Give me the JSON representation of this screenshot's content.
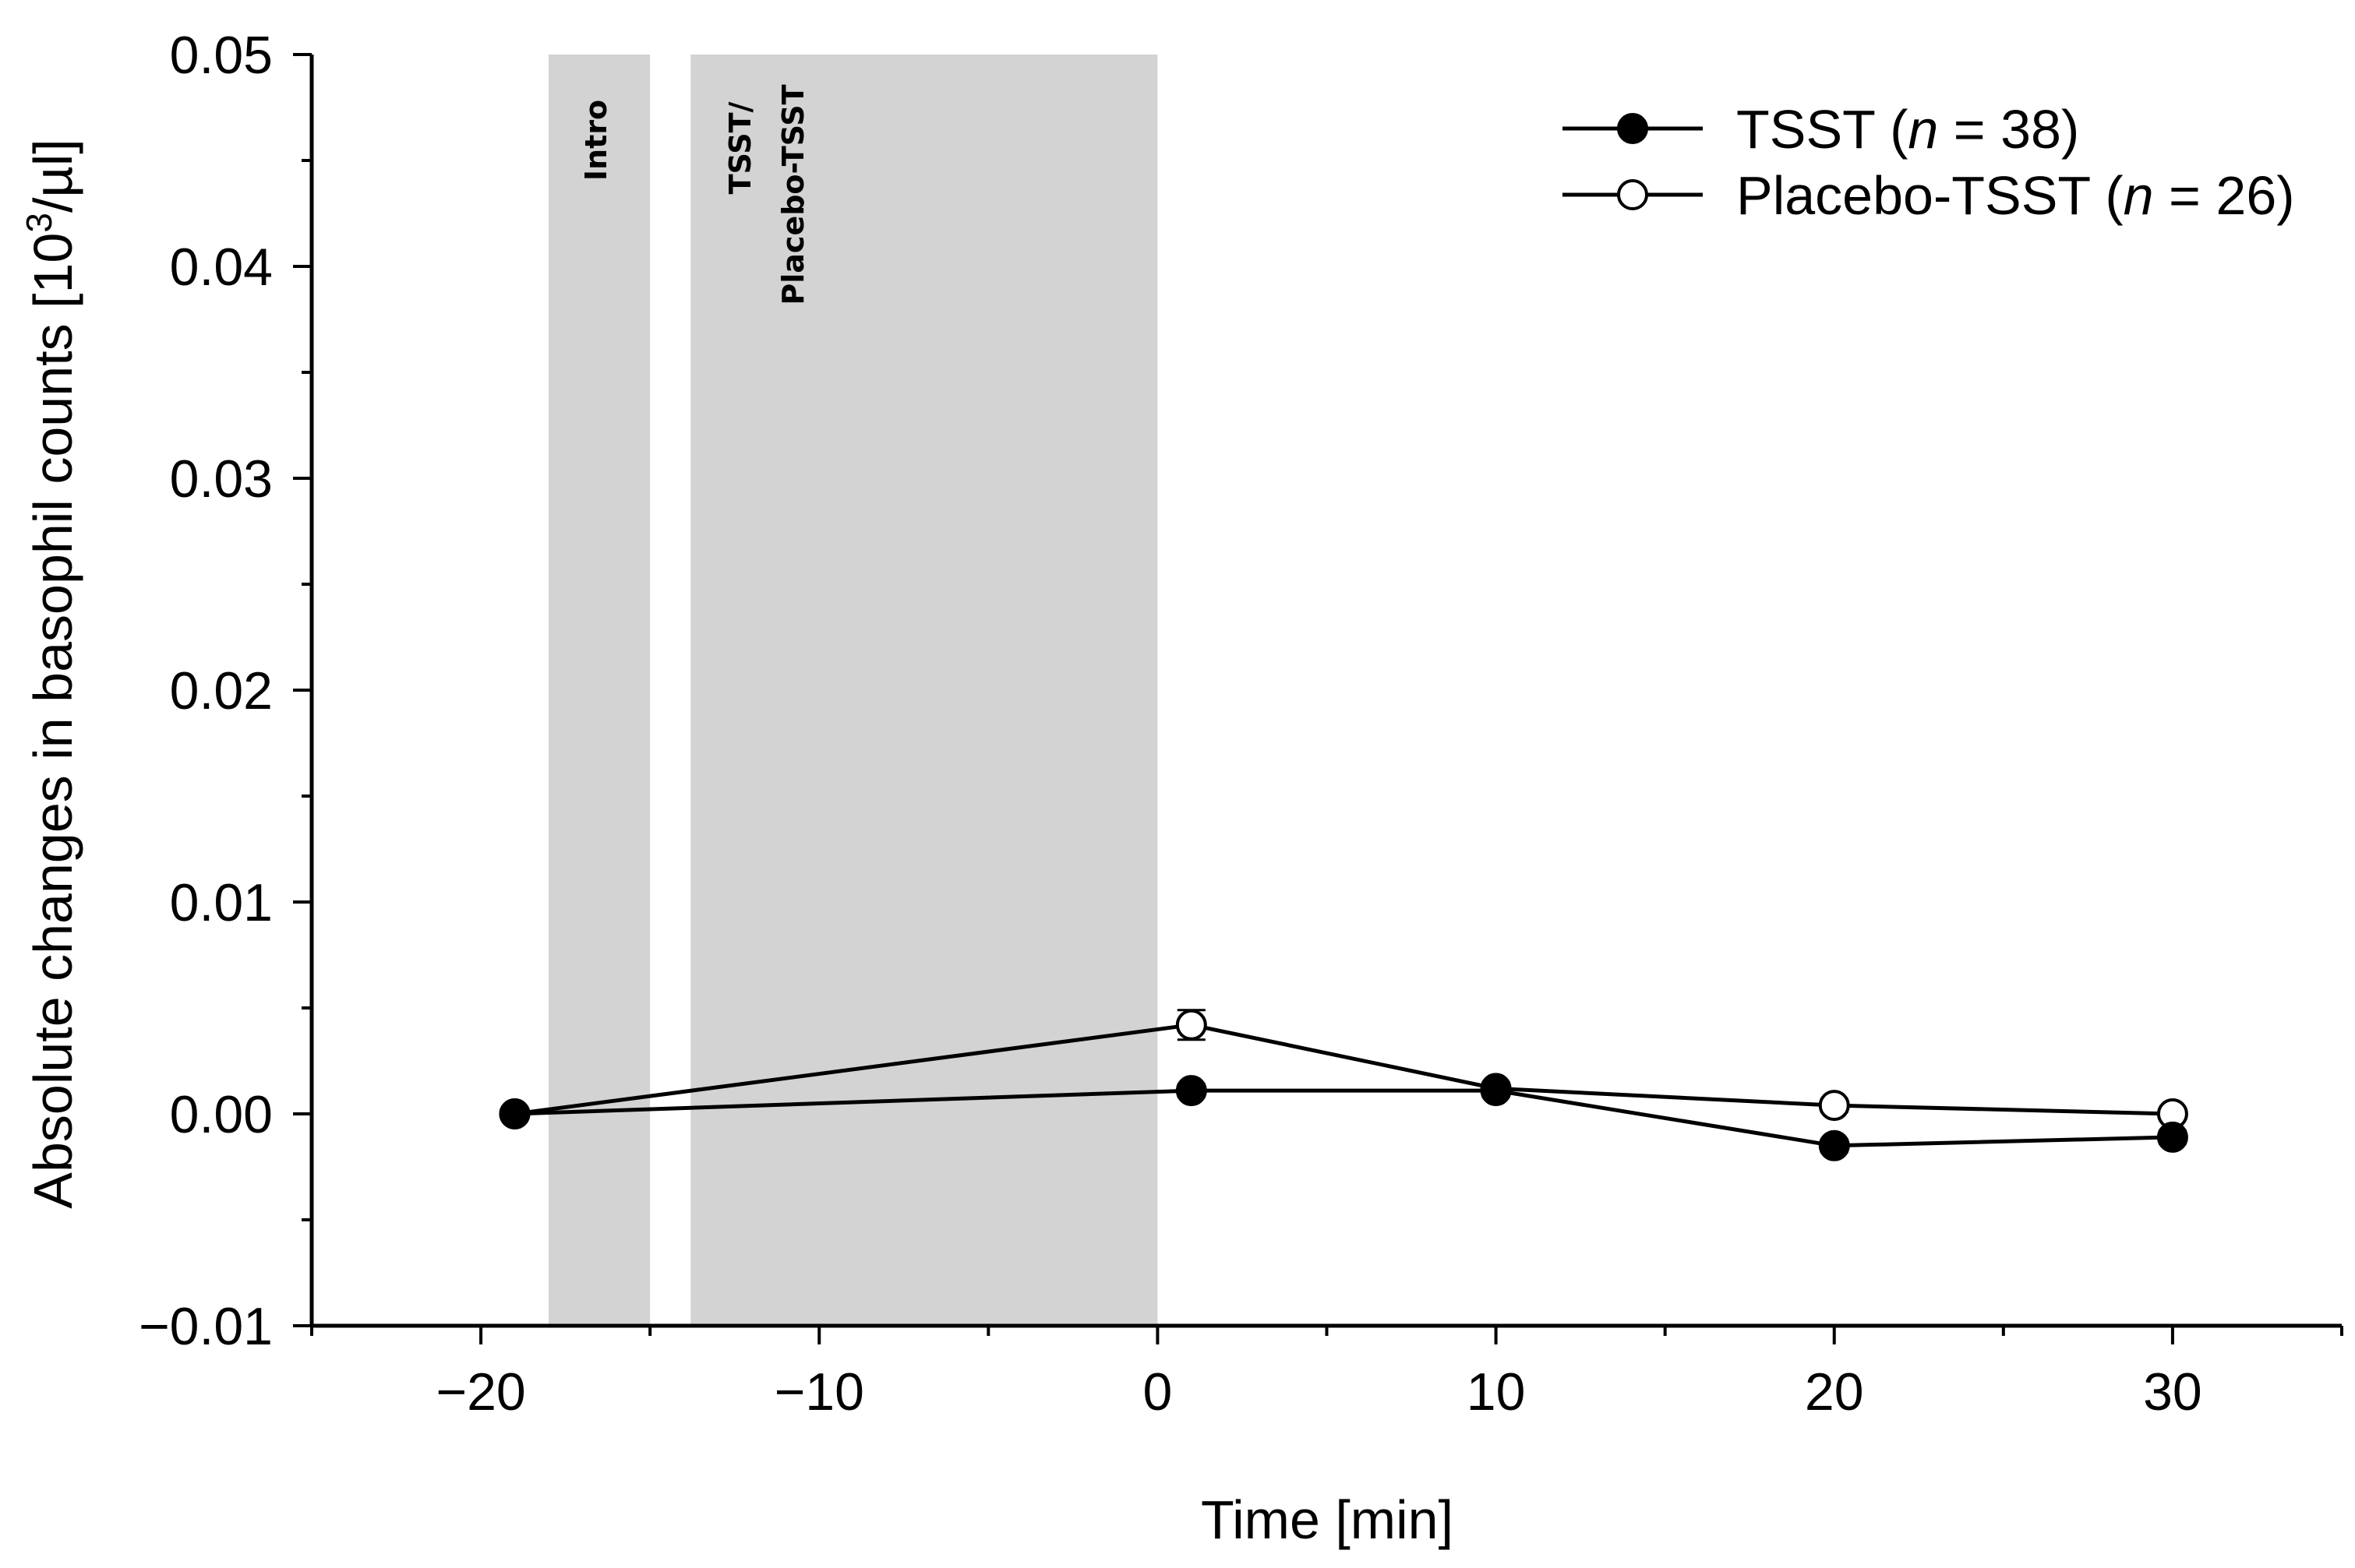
{
  "chart_data": {
    "type": "line",
    "title": "",
    "xlabel": "Time [min]",
    "ylabel": "Absolute changes in basophil counts [10³/µl]",
    "ylabel_parts": {
      "main": "Absolute changes in basophil counts [10",
      "sup": "3",
      "unit": "/µl]"
    },
    "xlim": [
      -25,
      35
    ],
    "ylim": [
      -0.01,
      0.05
    ],
    "xticks": [
      -20,
      -10,
      0,
      10,
      20,
      30
    ],
    "xtick_labels": [
      "−20",
      "−10",
      "0",
      "10",
      "20",
      "30"
    ],
    "yticks": [
      -0.01,
      0.0,
      0.01,
      0.02,
      0.03,
      0.04,
      0.05
    ],
    "ytick_labels": [
      "−0.01",
      "0.00",
      "0.01",
      "0.02",
      "0.03",
      "0.04",
      "0.05"
    ],
    "shaded_regions": [
      {
        "x0": -18,
        "x1": -15,
        "label": "Intro"
      },
      {
        "x0": -13.8,
        "x1": 0,
        "label_line1": "TSST/",
        "label_line2": "Placebo-TSST"
      }
    ],
    "series": [
      {
        "name": "TSST",
        "marker": "filled-circle",
        "x": [
          -19,
          1,
          10,
          20,
          30
        ],
        "y": [
          0.0,
          0.0011,
          0.0011,
          -0.0015,
          -0.0011
        ],
        "err": [
          0.0002,
          0.0003,
          0.0003,
          0.0003,
          0.0003
        ]
      },
      {
        "name": "Placebo-TSST",
        "marker": "open-circle",
        "x": [
          -19,
          1,
          10,
          20,
          30
        ],
        "y": [
          0.0,
          0.0042,
          0.0012,
          0.0004,
          0.0
        ],
        "err": [
          0.0,
          0.0007,
          0.0003,
          0.0003,
          0.0002
        ]
      }
    ],
    "legend": {
      "position": "top-right",
      "entries": [
        {
          "prefix": "TSST (",
          "n_symbol": "n",
          "suffix": " = 38)"
        },
        {
          "prefix": "Placebo-TSST (",
          "n_symbol": "n",
          "suffix": " = 26)"
        }
      ]
    }
  }
}
